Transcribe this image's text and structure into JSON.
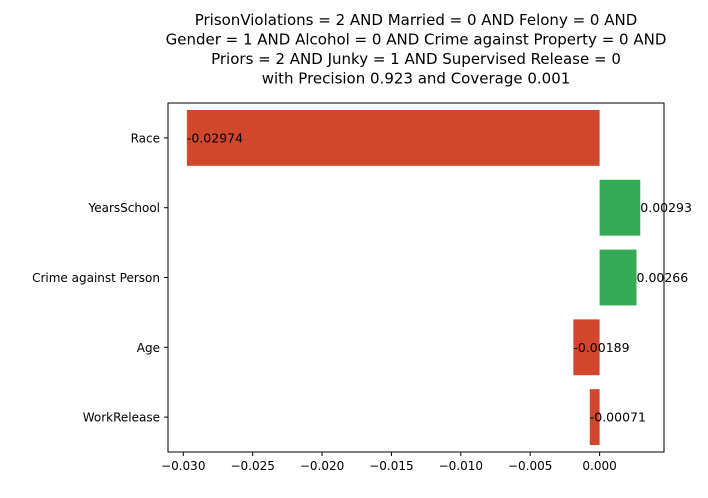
{
  "chart_data": {
    "type": "bar",
    "orientation": "horizontal",
    "title_lines": [
      "PrisonViolations = 2 AND Married = 0 AND Felony = 0 AND",
      "Gender = 1 AND Alcohol = 0 AND Crime against Property = 0 AND",
      "Priors = 2 AND Junky = 1 AND Supervised Release = 0",
      "with Precision 0.923 and Coverage 0.001"
    ],
    "categories": [
      "Race",
      "YearsSchool",
      "Crime against Person",
      "Age",
      "WorkRelease"
    ],
    "values": [
      -0.02974,
      0.00293,
      0.00266,
      -0.00189,
      -0.00071
    ],
    "value_labels": [
      "-0.02974",
      "0.00293",
      "0.00266",
      "-0.00189",
      "-0.00071"
    ],
    "xlim": [
      -0.0311,
      0.00464
    ],
    "xticks": [
      -0.03,
      -0.025,
      -0.02,
      -0.015,
      -0.01,
      -0.005,
      0.0
    ],
    "xtick_labels": [
      "−0.030",
      "−0.025",
      "−0.020",
      "−0.015",
      "−0.010",
      "−0.005",
      "0.000"
    ],
    "xlabel": "",
    "ylabel": "",
    "grid": false,
    "colors": {
      "negative": "#d1472c",
      "positive": "#33aa55",
      "axis": "#000000"
    }
  }
}
